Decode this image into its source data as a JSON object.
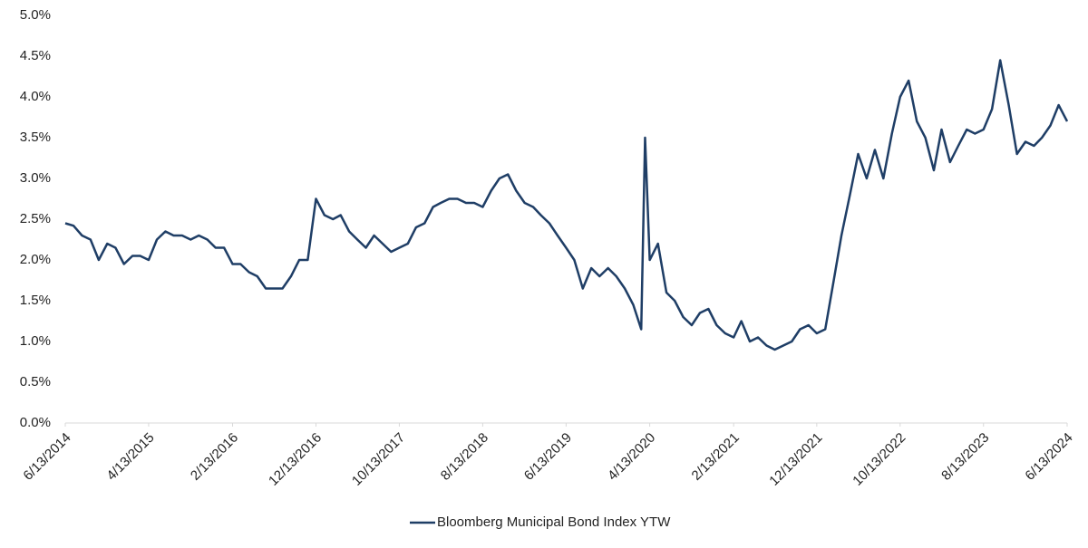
{
  "chart_data": {
    "type": "line",
    "x": [
      "6/13/2014",
      "7/13/2014",
      "8/13/2014",
      "9/13/2014",
      "10/13/2014",
      "11/13/2014",
      "12/13/2014",
      "1/13/2015",
      "2/13/2015",
      "3/13/2015",
      "4/13/2015",
      "5/13/2015",
      "6/13/2015",
      "7/13/2015",
      "8/13/2015",
      "9/13/2015",
      "10/13/2015",
      "11/13/2015",
      "12/13/2015",
      "1/13/2016",
      "2/13/2016",
      "3/13/2016",
      "4/13/2016",
      "5/13/2016",
      "6/13/2016",
      "7/13/2016",
      "8/13/2016",
      "9/13/2016",
      "10/13/2016",
      "11/13/2016",
      "12/13/2016",
      "1/13/2017",
      "2/13/2017",
      "3/13/2017",
      "4/13/2017",
      "5/13/2017",
      "6/13/2017",
      "7/13/2017",
      "8/13/2017",
      "9/13/2017",
      "10/13/2017",
      "11/13/2017",
      "12/13/2017",
      "1/13/2018",
      "2/13/2018",
      "3/13/2018",
      "4/13/2018",
      "5/13/2018",
      "6/13/2018",
      "7/13/2018",
      "8/13/2018",
      "9/13/2018",
      "10/13/2018",
      "11/13/2018",
      "12/13/2018",
      "1/13/2019",
      "2/13/2019",
      "3/13/2019",
      "4/13/2019",
      "5/13/2019",
      "6/13/2019",
      "7/13/2019",
      "8/13/2019",
      "9/13/2019",
      "10/13/2019",
      "11/13/2019",
      "12/13/2019",
      "1/13/2020",
      "2/13/2020",
      "3/13/2020",
      "3/27/2020",
      "4/13/2020",
      "5/13/2020",
      "6/13/2020",
      "7/13/2020",
      "8/13/2020",
      "9/13/2020",
      "10/13/2020",
      "11/13/2020",
      "12/13/2020",
      "1/13/2021",
      "2/13/2021",
      "3/13/2021",
      "4/13/2021",
      "5/13/2021",
      "6/13/2021",
      "7/13/2021",
      "8/13/2021",
      "9/13/2021",
      "10/13/2021",
      "11/13/2021",
      "12/13/2021",
      "1/13/2022",
      "2/13/2022",
      "3/13/2022",
      "4/13/2022",
      "5/13/2022",
      "6/13/2022",
      "7/13/2022",
      "8/13/2022",
      "9/13/2022",
      "10/13/2022",
      "11/13/2022",
      "12/13/2022",
      "1/13/2023",
      "2/13/2023",
      "3/13/2023",
      "4/13/2023",
      "5/13/2023",
      "6/13/2023",
      "7/13/2023",
      "8/13/2023",
      "9/13/2023",
      "10/13/2023",
      "11/13/2023",
      "12/13/2023",
      "1/13/2024",
      "2/13/2024",
      "3/13/2024",
      "4/13/2024",
      "5/13/2024",
      "6/13/2024"
    ],
    "series": [
      {
        "name": "Bloomberg Municipal Bond Index YTW",
        "color": "#1f3e66",
        "values": [
          2.45,
          2.42,
          2.3,
          2.25,
          2.0,
          2.2,
          2.15,
          1.95,
          2.05,
          2.05,
          2.0,
          2.25,
          2.35,
          2.3,
          2.3,
          2.25,
          2.3,
          2.25,
          2.15,
          2.15,
          1.95,
          1.95,
          1.85,
          1.8,
          1.65,
          1.65,
          1.65,
          1.8,
          2.0,
          2.0,
          2.75,
          2.55,
          2.5,
          2.55,
          2.35,
          2.25,
          2.15,
          2.3,
          2.2,
          2.1,
          2.15,
          2.2,
          2.4,
          2.45,
          2.65,
          2.7,
          2.75,
          2.75,
          2.7,
          2.7,
          2.65,
          2.85,
          3.0,
          3.05,
          2.85,
          2.7,
          2.65,
          2.55,
          2.45,
          2.3,
          2.15,
          2.0,
          1.65,
          1.9,
          1.8,
          1.9,
          1.8,
          1.65,
          1.45,
          1.15,
          3.5,
          2.0,
          2.2,
          1.6,
          1.5,
          1.3,
          1.2,
          1.35,
          1.4,
          1.2,
          1.1,
          1.05,
          1.25,
          1.0,
          1.05,
          0.95,
          0.9,
          0.95,
          1.0,
          1.15,
          1.2,
          1.1,
          1.15,
          1.75,
          2.3,
          2.8,
          3.3,
          3.0,
          3.35,
          3.0,
          3.55,
          4.0,
          4.2,
          3.7,
          3.5,
          3.1,
          3.6,
          3.2,
          3.4,
          3.6,
          3.55,
          3.6,
          3.85,
          4.45,
          3.9,
          3.3,
          3.45,
          3.4,
          3.5,
          3.65,
          3.9,
          3.7
        ]
      }
    ],
    "xlim": [
      "6/13/2014",
      "6/13/2024"
    ],
    "xticks": [
      "6/13/2014",
      "4/13/2015",
      "2/13/2016",
      "12/13/2016",
      "10/13/2017",
      "8/13/2018",
      "6/13/2019",
      "4/13/2020",
      "2/13/2021",
      "12/13/2021",
      "10/13/2022",
      "8/13/2023",
      "6/13/2024"
    ],
    "ylim": [
      0,
      5
    ],
    "yticks": [
      {
        "value": 0,
        "label": "0.0%"
      },
      {
        "value": 0.5,
        "label": "0.5%"
      },
      {
        "value": 1,
        "label": "1.0%"
      },
      {
        "value": 1.5,
        "label": "1.5%"
      },
      {
        "value": 2,
        "label": "2.0%"
      },
      {
        "value": 2.5,
        "label": "2.5%"
      },
      {
        "value": 3,
        "label": "3.0%"
      },
      {
        "value": 3.5,
        "label": "3.5%"
      },
      {
        "value": 4,
        "label": "4.0%"
      },
      {
        "value": 4.5,
        "label": "4.5%"
      },
      {
        "value": 5,
        "label": "5.0%"
      }
    ],
    "grid": false,
    "legend": "bottom"
  }
}
